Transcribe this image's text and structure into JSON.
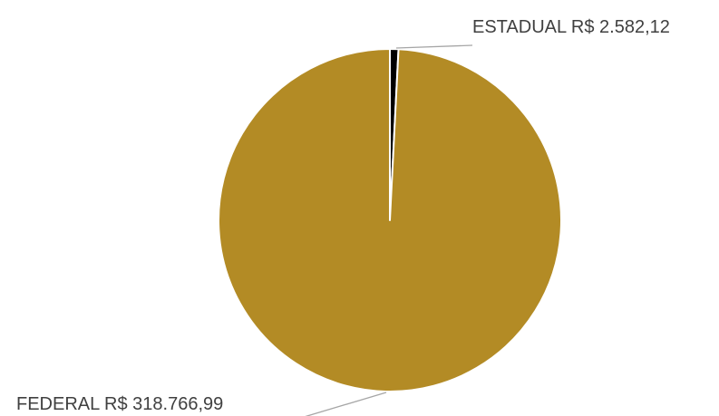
{
  "chart_data": {
    "type": "pie",
    "title": "",
    "slices": [
      {
        "label": "ESTADUAL R$ 2.582,12",
        "value": 2582.12,
        "color": "#000000"
      },
      {
        "label": "FEDERAL R$ 318.766,99",
        "value": 318766.99,
        "color": "#B38B25"
      }
    ],
    "legend": "none"
  }
}
